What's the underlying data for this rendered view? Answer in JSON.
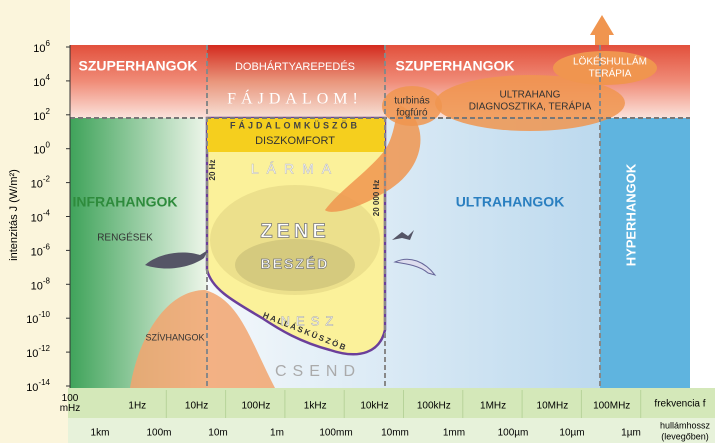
{
  "y_axis": {
    "label": "intenzitás J (W/m²)",
    "ticks": [
      {
        "base": "10",
        "exp": "6"
      },
      {
        "base": "10",
        "exp": "4"
      },
      {
        "base": "10",
        "exp": "2"
      },
      {
        "base": "10",
        "exp": "0"
      },
      {
        "base": "10",
        "exp": "-2"
      },
      {
        "base": "10",
        "exp": "-4"
      },
      {
        "base": "10",
        "exp": "-6"
      },
      {
        "base": "10",
        "exp": "-8"
      },
      {
        "base": "10",
        "exp": "-10"
      },
      {
        "base": "10",
        "exp": "-12"
      },
      {
        "base": "10",
        "exp": "-14"
      }
    ]
  },
  "frequency": {
    "labels": [
      "100 mHz",
      "1Hz",
      "10Hz",
      "100Hz",
      "1kHz",
      "10kHz",
      "100kHz",
      "1MHz",
      "10MHz",
      "100MHz"
    ],
    "title": "frekvencia f"
  },
  "wavelength": {
    "labels": [
      "1km",
      "100m",
      "10m",
      "1m",
      "100mm",
      "10mm",
      "1mm",
      "100µm",
      "10µm",
      "1µm"
    ],
    "title": [
      "hullámhossz",
      "(levegőben)"
    ]
  },
  "regions": {
    "super_left": "SZUPERHANGOK",
    "eardrum": "DOBHÁRTYAREPEDÉS",
    "super_right": "SZUPERHANGOK",
    "shockwave": [
      "LÖKÉSHULLÁM",
      "TERÁPIA"
    ],
    "pain": "FÁJDALOM!",
    "drill": [
      "turbinás",
      "fogfúró"
    ],
    "ultrasound_diag": [
      "ULTRAHANG",
      "DIAGNOSZTIKA, TERÁPIA"
    ],
    "pain_threshold": "FÁJDALOMKÜSZÖB",
    "discomfort": "DISZKOMFORT",
    "noise": "LÁRMA",
    "hz20": "20 Hz",
    "hz20000": "20 000 Hz",
    "infra": "INFRAHANGOK",
    "ultra": "ULTRAHANGOK",
    "hyper": "HYPERHANGOK",
    "music": "ZENE",
    "speech": "BESZÉD",
    "earthquakes": "RENGÉSEK",
    "heart": "SZÍVHANGOK",
    "rustle": "NESZ",
    "hearing_threshold": "HALLÁSKÜSZÖB",
    "silence": "CSEND"
  }
}
